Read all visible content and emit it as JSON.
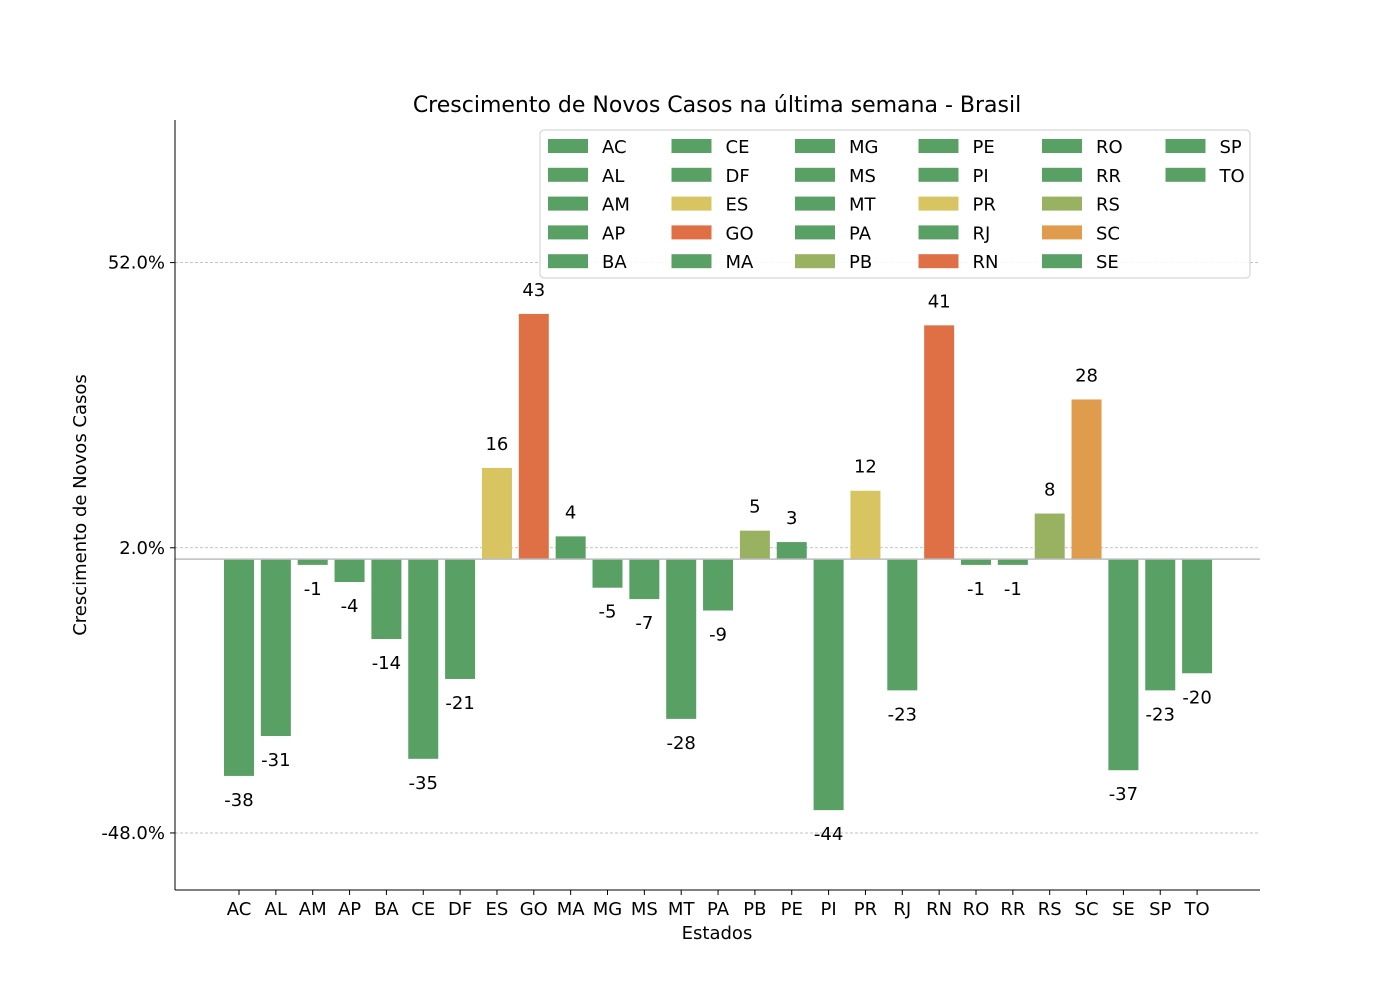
{
  "chart_data": {
    "type": "bar",
    "title": "Crescimento de Novos Casos na última semana - Brasil",
    "xlabel": "Estados",
    "ylabel": "Crescimento de Novos Casos",
    "ylim": [
      -58,
      77
    ],
    "yticks": [
      52,
      2,
      -48
    ],
    "ytick_labels": [
      "52.0%",
      "2.0%",
      "-48.0%"
    ],
    "grid": "horizontal dashed",
    "baseline": 0,
    "legend_position": "top-right",
    "legend_columns": 6,
    "categories": [
      "AC",
      "AL",
      "AM",
      "AP",
      "BA",
      "CE",
      "DF",
      "ES",
      "GO",
      "MA",
      "MG",
      "MS",
      "MT",
      "PA",
      "PB",
      "PE",
      "PI",
      "PR",
      "RJ",
      "RN",
      "RO",
      "RR",
      "RS",
      "SC",
      "SE",
      "SP",
      "TO"
    ],
    "values": [
      -38,
      -31,
      -1,
      -4,
      -14,
      -35,
      -21,
      16,
      43,
      4,
      -5,
      -7,
      -28,
      -9,
      5,
      3,
      -44,
      12,
      -23,
      41,
      -1,
      -1,
      8,
      28,
      -37,
      -23,
      -20
    ],
    "value_labels": [
      "-38",
      "-31",
      "-1",
      "-4",
      "-14",
      "-35",
      "-21",
      "16",
      "43",
      "4",
      "-5",
      "-7",
      "-28",
      "-9",
      "5",
      "3",
      "-44",
      "12",
      "-23",
      "41",
      "-1",
      "-1",
      "8",
      "28",
      "-37",
      "-23",
      "-20"
    ],
    "colors": [
      "#59a065",
      "#59a065",
      "#59a065",
      "#59a065",
      "#59a065",
      "#59a065",
      "#59a065",
      "#d9c462",
      "#df6f44",
      "#59a065",
      "#59a065",
      "#59a065",
      "#59a065",
      "#59a065",
      "#98b262",
      "#59a065",
      "#59a065",
      "#d9c462",
      "#59a065",
      "#df6f44",
      "#59a065",
      "#59a065",
      "#98b262",
      "#df9c4d",
      "#59a065",
      "#59a065",
      "#59a065"
    ]
  }
}
